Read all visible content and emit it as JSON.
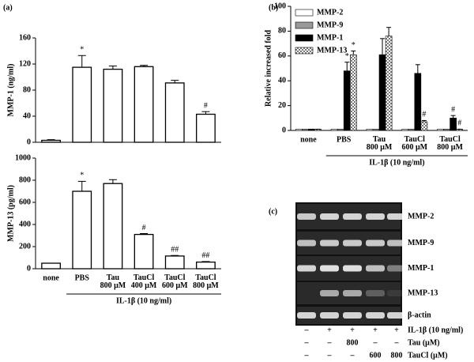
{
  "chart_data": [
    {
      "type": "bar",
      "panel": "(a)",
      "ylabel": "MMP-1 (ng/ml)",
      "color": "#ffffff",
      "values": [
        3,
        115,
        112,
        116,
        91,
        43
      ],
      "errors": [
        1,
        18,
        5,
        2,
        4,
        4
      ],
      "significance": [
        null,
        "*",
        null,
        null,
        null,
        "#"
      ],
      "ylim": [
        0,
        160
      ],
      "yticks": [
        0,
        40,
        80,
        120,
        160
      ]
    },
    {
      "type": "bar",
      "ylabel": "MMP-13 (pg/ml)",
      "color": "#ffffff",
      "categories": [
        "none",
        "PBS",
        "Tau 800 μM",
        "TauCl 400 μM",
        "TauCl 600 μM",
        "TauCl 800 μM"
      ],
      "values": [
        50,
        700,
        770,
        310,
        115,
        60
      ],
      "errors": [
        0,
        90,
        35,
        8,
        5,
        5
      ],
      "significance": [
        null,
        "*",
        null,
        "#",
        "##",
        "##"
      ],
      "group_label": "IL-1β (10 ng/ml)",
      "ylim": [
        0,
        1000
      ],
      "yticks": [
        0,
        200,
        400,
        600,
        800,
        1000
      ]
    },
    {
      "type": "grouped_bar",
      "panel": "(b)",
      "ylabel": "Relative increased fold",
      "categories": [
        "none",
        "PBS",
        "Tau 800 μM",
        "TauCl 600 μM",
        "TauCl 800 μM"
      ],
      "series": [
        {
          "name": "MMP-2",
          "color": "#ffffff",
          "values": [
            1,
            1,
            1,
            1,
            1
          ]
        },
        {
          "name": "MMP-9",
          "color": "#999999",
          "values": [
            1,
            1,
            1,
            1,
            1
          ]
        },
        {
          "name": "MMP-1",
          "color": "#000000",
          "values": [
            1,
            48,
            61,
            46,
            10
          ],
          "errors": [
            0,
            7,
            13,
            7,
            2
          ],
          "significance": [
            null,
            "*",
            null,
            null,
            "#"
          ]
        },
        {
          "name": "MMP-13",
          "color": "#ffffff",
          "pattern": "checkered",
          "values": [
            1,
            61,
            76,
            7,
            1
          ],
          "errors": [
            0,
            3,
            7,
            1,
            0
          ],
          "significance": [
            null,
            "*",
            null,
            "#",
            "#"
          ]
        }
      ],
      "group_label": "IL-1β (10 ng/ml)",
      "legend": "top-left",
      "ylim": [
        0,
        100
      ],
      "yticks": [
        0,
        20,
        40,
        60,
        80,
        100
      ]
    }
  ],
  "gel": {
    "panel": "(c)",
    "bands": [
      "MMP-2",
      "MMP-9",
      "MMP-1",
      "MMP-13",
      "β-actin"
    ],
    "treatments": [
      {
        "label": "IL-1β (10 ng/ml)",
        "lanes": [
          "–",
          "+",
          "+",
          "+",
          "+"
        ]
      },
      {
        "label": "Tau (μM)",
        "lanes": [
          "–",
          "–",
          "800",
          "–",
          "–"
        ]
      },
      {
        "label": "TauCl (μM)",
        "lanes": [
          "–",
          "–",
          "–",
          "600",
          "800"
        ]
      }
    ]
  }
}
